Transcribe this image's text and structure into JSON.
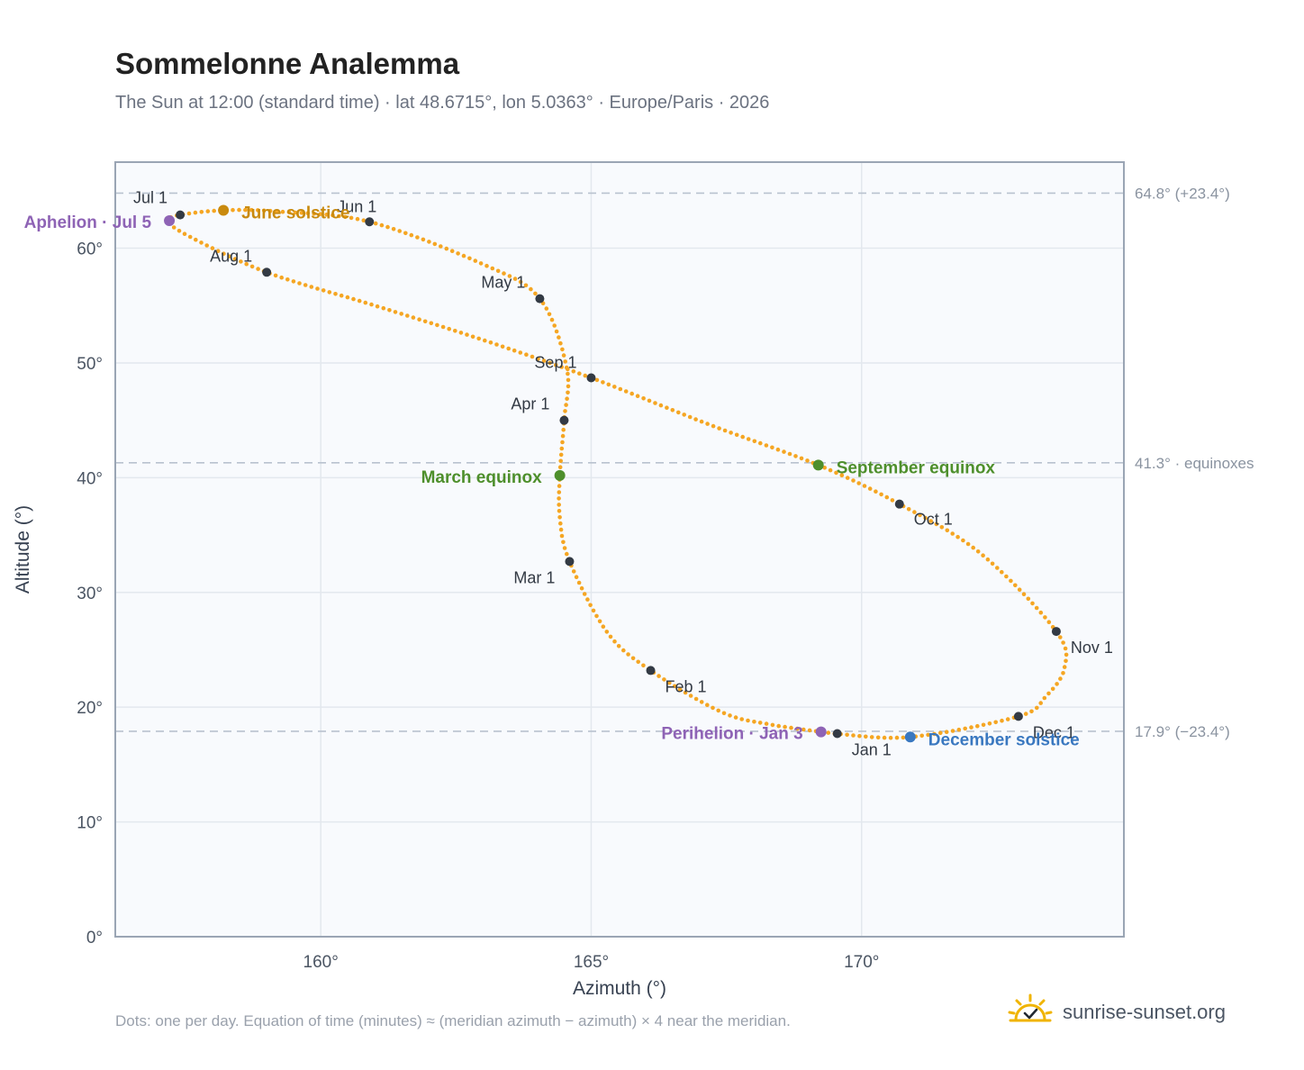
{
  "header": {
    "title": "Sommelonne Analemma",
    "subtitle": "The Sun at 12:00 (standard time) · lat 48.6715°, lon 5.0363° · Europe/Paris · 2026"
  },
  "footer": {
    "note": "Dots: one per day. Equation of time (minutes) ≈ (meridian azimuth − azimuth) × 4 near the meridian.",
    "brand": "sunrise-sunset.org",
    "brand_icon": "sun-check-icon"
  },
  "colors": {
    "path": "#f5a623",
    "month_marker": "#333a44",
    "june_solstice": "#c98a0e",
    "december_solstice": "#3a78c0",
    "equinox": "#4e8f2c",
    "apsis": "#8e63b5",
    "reference_line": "#b9c2cf",
    "plot_bg": "#f8fafd",
    "grid": "#e3e8ee",
    "frame": "#9aa5b4"
  },
  "chart_data": {
    "type": "scatter",
    "xlabel": "Azimuth (°)",
    "ylabel": "Altitude (°)",
    "xlim": [
      156.2,
      174.85
    ],
    "ylim": [
      0,
      67.5
    ],
    "x_ticks": [
      160,
      165,
      170
    ],
    "x_tick_labels": [
      "160°",
      "165°",
      "170°"
    ],
    "y_ticks": [
      0,
      10,
      20,
      30,
      40,
      50,
      60
    ],
    "y_tick_labels": [
      "0°",
      "10°",
      "20°",
      "30°",
      "40°",
      "50°",
      "60°"
    ],
    "grid": true,
    "path_anchors": [
      {
        "x": 169.5,
        "y": 17.7
      },
      {
        "x": 168.3,
        "y": 18.5
      },
      {
        "x": 167.4,
        "y": 19.6
      },
      {
        "x": 166.1,
        "y": 23.2
      },
      {
        "x": 165.3,
        "y": 26.5
      },
      {
        "x": 164.6,
        "y": 32.7
      },
      {
        "x": 164.42,
        "y": 36.5
      },
      {
        "x": 164.42,
        "y": 40.2
      },
      {
        "x": 164.5,
        "y": 45.0
      },
      {
        "x": 164.55,
        "y": 49.5
      },
      {
        "x": 164.05,
        "y": 55.6
      },
      {
        "x": 163.0,
        "y": 58.6
      },
      {
        "x": 160.9,
        "y": 62.3
      },
      {
        "x": 159.2,
        "y": 63.2
      },
      {
        "x": 158.2,
        "y": 63.3
      },
      {
        "x": 157.4,
        "y": 62.9
      },
      {
        "x": 157.2,
        "y": 62.4
      },
      {
        "x": 157.5,
        "y": 61.2
      },
      {
        "x": 159.0,
        "y": 57.9
      },
      {
        "x": 161.0,
        "y": 55.0
      },
      {
        "x": 163.0,
        "y": 52.0
      },
      {
        "x": 165.0,
        "y": 48.7
      },
      {
        "x": 167.2,
        "y": 44.6
      },
      {
        "x": 169.2,
        "y": 41.1
      },
      {
        "x": 170.7,
        "y": 37.7
      },
      {
        "x": 172.2,
        "y": 33.4
      },
      {
        "x": 173.6,
        "y": 26.6
      },
      {
        "x": 173.75,
        "y": 23.4
      },
      {
        "x": 173.4,
        "y": 20.9
      },
      {
        "x": 172.9,
        "y": 19.2
      },
      {
        "x": 170.9,
        "y": 17.4
      },
      {
        "x": 169.5,
        "y": 17.7
      }
    ],
    "month_markers": [
      {
        "label": "Jan 1",
        "x": 169.55,
        "y": 17.7
      },
      {
        "label": "Feb 1",
        "x": 166.1,
        "y": 23.2
      },
      {
        "label": "Mar 1",
        "x": 164.6,
        "y": 32.7
      },
      {
        "label": "Apr 1",
        "x": 164.5,
        "y": 45.0
      },
      {
        "label": "May 1",
        "x": 164.05,
        "y": 55.6
      },
      {
        "label": "Jun 1",
        "x": 160.9,
        "y": 62.3
      },
      {
        "label": "Jul 1",
        "x": 157.4,
        "y": 62.9
      },
      {
        "label": "Aug 1",
        "x": 159.0,
        "y": 57.9
      },
      {
        "label": "Sep 1",
        "x": 165.0,
        "y": 48.7
      },
      {
        "label": "Oct 1",
        "x": 170.7,
        "y": 37.7
      },
      {
        "label": "Nov 1",
        "x": 173.6,
        "y": 26.6
      },
      {
        "label": "Dec 1",
        "x": 172.9,
        "y": 19.2
      }
    ],
    "events": [
      {
        "label": "June solstice",
        "x": 158.2,
        "y": 63.3,
        "kind": "june_solstice"
      },
      {
        "label": "December solstice",
        "x": 170.9,
        "y": 17.4,
        "kind": "december_solstice"
      },
      {
        "label": "March equinox",
        "x": 164.42,
        "y": 40.2,
        "kind": "equinox"
      },
      {
        "label": "September equinox",
        "x": 169.2,
        "y": 41.1,
        "kind": "equinox"
      },
      {
        "label": "Aphelion · Jul 5",
        "x": 157.2,
        "y": 62.4,
        "kind": "apsis"
      },
      {
        "label": "Perihelion · Jan 3",
        "x": 169.25,
        "y": 17.85,
        "kind": "apsis"
      }
    ],
    "reference_lines": [
      {
        "y": 64.8,
        "label": "64.8° (+23.4°)"
      },
      {
        "y": 41.3,
        "label": "41.3° · equinoxes"
      },
      {
        "y": 17.9,
        "label": "17.9° (−23.4°)"
      }
    ]
  }
}
